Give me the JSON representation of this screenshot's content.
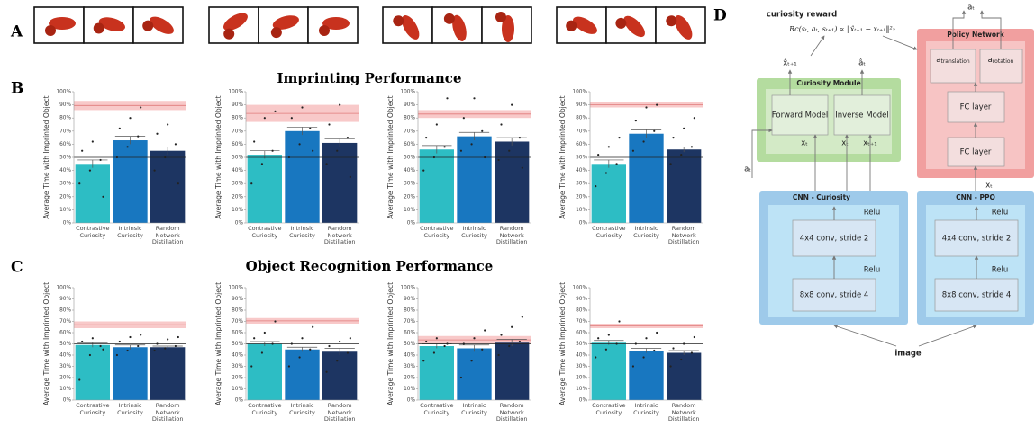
{
  "panel_labels": [
    "A",
    "B",
    "C",
    "D"
  ],
  "sections": [
    "Imprinting Performance",
    "Object Recognition Performance"
  ],
  "common": {
    "y_label": "Average Time with Imprinted Object",
    "categories": [
      "Contrastive Curiosity",
      "Intrinsic Curiosity",
      "Random Network Distillation"
    ],
    "colors": [
      "#2dbdc4",
      "#1877c0",
      "#1d3562"
    ],
    "ylim": [
      0,
      100
    ],
    "yticks": [
      {
        "value": 0,
        "label": "0%"
      },
      {
        "value": 10,
        "label": "10%"
      },
      {
        "value": 20,
        "label": "20%"
      },
      {
        "value": 30,
        "label": "30%"
      },
      {
        "value": 40,
        "label": "40%"
      },
      {
        "value": 50,
        "label": "50%"
      },
      {
        "value": 60,
        "label": "60%"
      },
      {
        "value": 70,
        "label": "70%"
      },
      {
        "value": 80,
        "label": "80%"
      },
      {
        "value": 90,
        "label": "90%"
      },
      {
        "value": 100,
        "label": "100%"
      }
    ]
  },
  "chart_data": [
    {
      "type": "bar",
      "values": [
        45,
        63,
        55
      ],
      "errors": [
        3,
        3,
        3
      ],
      "band": [
        86,
        93
      ],
      "band_mean": 89.5,
      "chance": 50,
      "points": [
        [
          30,
          40,
          48,
          55,
          62,
          20
        ],
        [
          50,
          58,
          66,
          72,
          80,
          88
        ],
        [
          40,
          50,
          60,
          68,
          75,
          30
        ]
      ]
    },
    {
      "type": "bar",
      "values": [
        52,
        70,
        61
      ],
      "errors": [
        3,
        3,
        3
      ],
      "band": [
        77,
        90
      ],
      "band_mean": 83.5,
      "chance": 50,
      "points": [
        [
          30,
          45,
          55,
          62,
          80,
          85
        ],
        [
          50,
          60,
          72,
          80,
          88,
          55
        ],
        [
          45,
          55,
          65,
          75,
          90,
          35
        ]
      ]
    },
    {
      "type": "bar",
      "values": [
        56,
        66,
        62
      ],
      "errors": [
        3,
        3,
        3
      ],
      "band": [
        80,
        86
      ],
      "band_mean": 83,
      "chance": 50,
      "points": [
        [
          40,
          50,
          58,
          65,
          75,
          95
        ],
        [
          55,
          60,
          70,
          80,
          95,
          50
        ],
        [
          48,
          55,
          65,
          75,
          90,
          42
        ]
      ]
    },
    {
      "type": "bar",
      "values": [
        45,
        68,
        56
      ],
      "errors": [
        3,
        3,
        2
      ],
      "band": [
        88,
        92
      ],
      "band_mean": 90,
      "chance": 50,
      "points": [
        [
          28,
          38,
          45,
          52,
          58,
          65
        ],
        [
          55,
          62,
          70,
          78,
          88,
          90
        ],
        [
          45,
          52,
          58,
          65,
          72,
          80
        ]
      ]
    },
    {
      "type": "bar",
      "values": [
        49,
        47,
        47
      ],
      "errors": [
        2,
        2,
        1
      ],
      "band": [
        64,
        70
      ],
      "band_mean": 67,
      "chance": 50,
      "points": [
        [
          18,
          40,
          48,
          52,
          55,
          45
        ],
        [
          40,
          44,
          48,
          52,
          56,
          58
        ],
        [
          44,
          46,
          48,
          50,
          54,
          56
        ]
      ]
    },
    {
      "type": "bar",
      "values": [
        50,
        45,
        43
      ],
      "errors": [
        2,
        2,
        3
      ],
      "band": [
        68,
        73
      ],
      "band_mean": 70.5,
      "chance": 50,
      "points": [
        [
          30,
          42,
          50,
          55,
          60,
          70
        ],
        [
          30,
          38,
          45,
          50,
          55,
          65
        ],
        [
          25,
          35,
          42,
          48,
          52,
          55
        ]
      ]
    },
    {
      "type": "bar",
      "values": [
        48,
        46,
        51
      ],
      "errors": [
        2,
        3,
        3
      ],
      "band": [
        50,
        57
      ],
      "band_mean": 53.5,
      "chance": 50,
      "points": [
        [
          35,
          42,
          48,
          52,
          55,
          50
        ],
        [
          20,
          35,
          45,
          50,
          55,
          62
        ],
        [
          40,
          48,
          52,
          58,
          65,
          74
        ]
      ]
    },
    {
      "type": "bar",
      "values": [
        51,
        44,
        42
      ],
      "errors": [
        2,
        2,
        2
      ],
      "band": [
        64,
        68
      ],
      "band_mean": 66,
      "chance": 50,
      "points": [
        [
          38,
          45,
          50,
          55,
          58,
          70
        ],
        [
          30,
          38,
          44,
          50,
          55,
          60
        ],
        [
          30,
          36,
          42,
          46,
          50,
          56
        ]
      ]
    }
  ],
  "diagram": {
    "reward_title": "curiosity reward",
    "formula": "Rc(sₜ, aₜ, sₜ₊₁) ∝ ‖x̂ₜ₊₁ − xₜ₊₁‖²₂",
    "curiosity_module": "Curiosity Module",
    "forward_model": "Forward Model",
    "inverse_model": "Inverse Model",
    "policy_network": "Policy Network",
    "a_translation": {
      "base": "a",
      "sub": "translation"
    },
    "a_rotation": {
      "base": "a",
      "sub": "rotation"
    },
    "fc_layers": [
      "FC layer",
      "FC layer"
    ],
    "cnn_curiosity": "CNN - Curiosity",
    "cnn_ppo": "CNN - PPO",
    "relu": [
      "Relu",
      "Relu",
      "Relu",
      "Relu"
    ],
    "conv_4x4": [
      "4x4 conv, stride 2",
      "4x4 conv, stride 2"
    ],
    "conv_8x8": [
      "8x8 conv, stride 4",
      "8x8 conv, stride 4"
    ],
    "image": "image",
    "symbols": {
      "x_hat": "x̂ₜ₊₁",
      "a_hat": "âₜ",
      "a_t_in": "aₜ",
      "x_t_fwd": "xₜ",
      "x_t_inv": "xₜ",
      "x_t1_inv": "xₜ₊₁",
      "a_t_out": "aₜ",
      "x_t_ppo": "xₜ"
    }
  }
}
